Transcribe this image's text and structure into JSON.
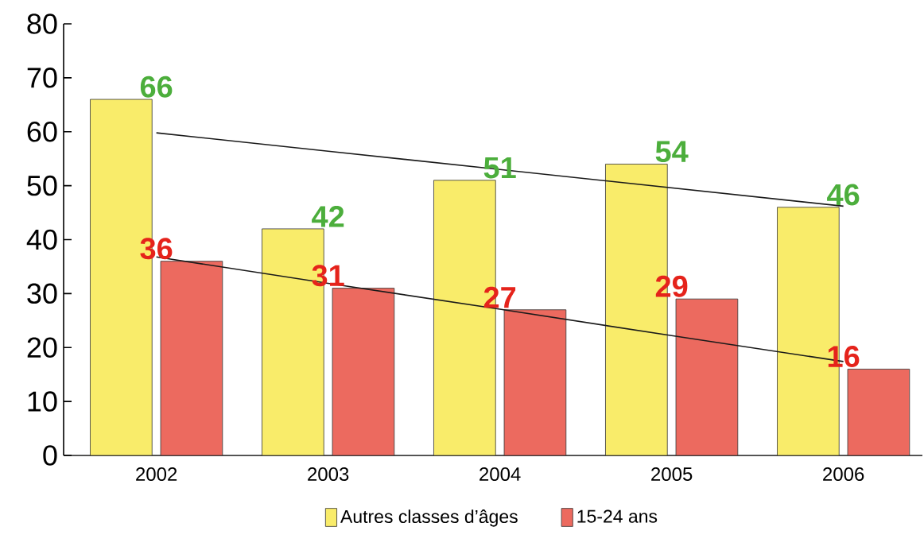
{
  "chart_data": {
    "type": "bar",
    "categories": [
      "2002",
      "2003",
      "2004",
      "2005",
      "2006"
    ],
    "series": [
      {
        "name": "Autres classes d’âges",
        "color": "#f9ec6a",
        "values": [
          66,
          42,
          51,
          54,
          46
        ],
        "value_labels": [
          "66",
          "42",
          "51",
          "54",
          "46"
        ]
      },
      {
        "name": "15-24 ans",
        "color": "#ec6a5f",
        "values": [
          36,
          31,
          27,
          29,
          16
        ],
        "value_labels": [
          "36",
          "31",
          "27",
          "29",
          "16"
        ]
      },
      {
        "type": "line",
        "color": "#1a1a1a",
        "values": [
          59.8,
          56.4,
          53.0,
          49.6,
          46.2
        ]
      },
      {
        "type": "line",
        "color": "#1a1a1a",
        "values": [
          36.8,
          31.9,
          27.1,
          22.2,
          17.4
        ]
      }
    ],
    "ylim": [
      0,
      80
    ],
    "yticks": [
      0,
      10,
      20,
      30,
      40,
      50,
      60,
      70,
      80
    ],
    "legend": "bottom",
    "grid": false,
    "marker": "none",
    "line_style": "solid"
  }
}
